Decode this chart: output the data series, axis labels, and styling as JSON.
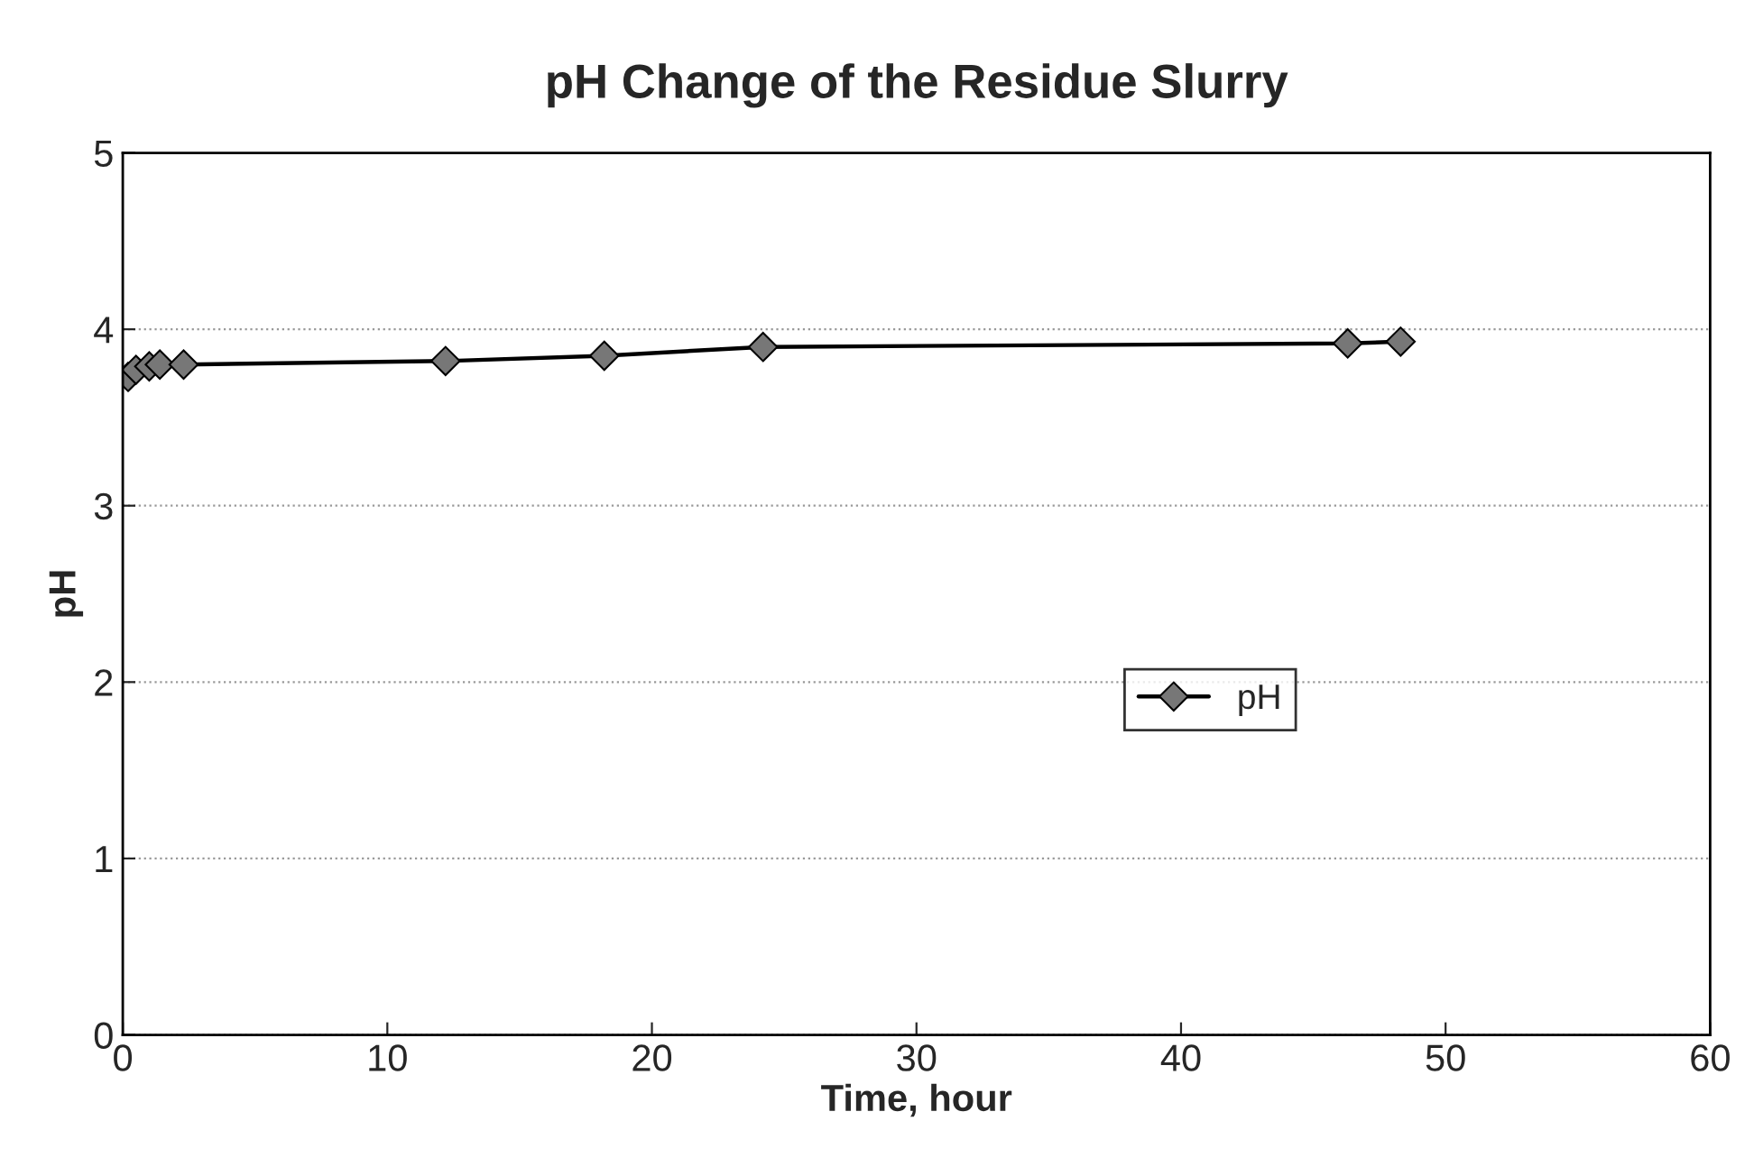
{
  "chart_data": {
    "type": "line",
    "title": "pH Change of the Residue Slurry",
    "xlabel": "Time, hour",
    "ylabel": "pH",
    "xlim": [
      0,
      60
    ],
    "xticks": [
      0,
      10,
      20,
      30,
      40,
      50,
      60
    ],
    "ylim": [
      0,
      5
    ],
    "yticks": [
      0,
      1,
      2,
      3,
      4,
      5
    ],
    "series": [
      {
        "name": "pH",
        "color": "#000000",
        "x": [
          0.2,
          0.5,
          1.0,
          1.4,
          2.3,
          12.2,
          18.2,
          24.2,
          46.3,
          48.3
        ],
        "values": [
          3.73,
          3.77,
          3.79,
          3.8,
          3.8,
          3.82,
          3.85,
          3.9,
          3.92,
          3.93
        ]
      }
    ],
    "marker": "diamond",
    "line_style": "solid",
    "grid": "y",
    "legend": "center right"
  }
}
